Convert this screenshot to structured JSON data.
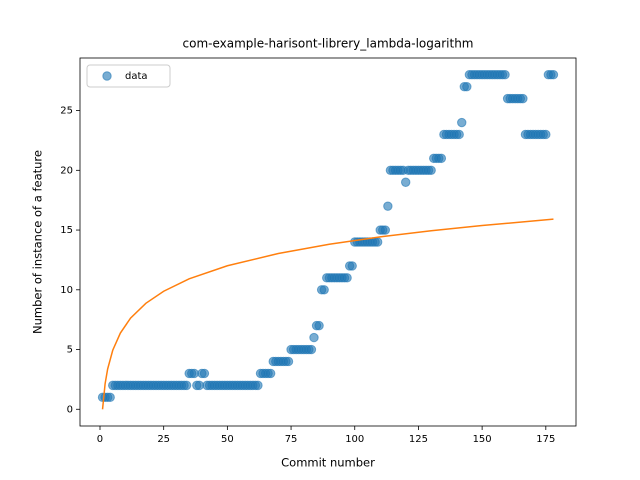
{
  "chart_data": {
    "type": "scatter",
    "title": "com-example-harisont-librery_lambda-logarithm",
    "x_label": "Commit number",
    "y_label": "Number of instance of a feature",
    "legend": "upper left",
    "xlim": [
      -7.85,
      186.85
    ],
    "ylim": [
      -1.4,
      29.4
    ],
    "xticks": [
      0,
      25,
      50,
      75,
      100,
      125,
      150,
      175
    ],
    "yticks": [
      0,
      5,
      10,
      15,
      20,
      25
    ],
    "series": [
      {
        "name": "data",
        "color": "#1f77b4",
        "style": "markers",
        "x": [
          1,
          2,
          3,
          4,
          5,
          6,
          7,
          8,
          9,
          10,
          11,
          12,
          13,
          14,
          15,
          16,
          17,
          18,
          19,
          20,
          21,
          22,
          23,
          24,
          25,
          26,
          27,
          28,
          29,
          30,
          31,
          32,
          33,
          34,
          35,
          36,
          37,
          38,
          39,
          40,
          41,
          42,
          43,
          44,
          45,
          46,
          47,
          48,
          49,
          50,
          51,
          52,
          53,
          54,
          55,
          56,
          57,
          58,
          59,
          60,
          61,
          62,
          63,
          64,
          65,
          66,
          67,
          68,
          69,
          70,
          71,
          72,
          73,
          74,
          75,
          76,
          77,
          78,
          79,
          80,
          81,
          82,
          83,
          84,
          85,
          86,
          87,
          88,
          89,
          90,
          91,
          92,
          93,
          94,
          95,
          96,
          97,
          98,
          99,
          100,
          101,
          102,
          103,
          104,
          105,
          106,
          107,
          108,
          109,
          110,
          111,
          112,
          113,
          114,
          115,
          116,
          117,
          118,
          119,
          120,
          121,
          122,
          123,
          124,
          125,
          126,
          127,
          128,
          129,
          130,
          131,
          132,
          133,
          134,
          135,
          136,
          137,
          138,
          139,
          140,
          141,
          142,
          143,
          144,
          145,
          146,
          147,
          148,
          149,
          150,
          151,
          152,
          153,
          154,
          155,
          156,
          157,
          158,
          159,
          160,
          161,
          162,
          163,
          164,
          165,
          166,
          167,
          168,
          169,
          170,
          171,
          172,
          173,
          174,
          175,
          176,
          177,
          178
        ],
        "values": [
          1,
          1,
          1,
          1,
          2,
          2,
          2,
          2,
          2,
          2,
          2,
          2,
          2,
          2,
          2,
          2,
          2,
          2,
          2,
          2,
          2,
          2,
          2,
          2,
          2,
          2,
          2,
          2,
          2,
          2,
          2,
          2,
          2,
          2,
          3,
          3,
          3,
          2,
          2,
          3,
          3,
          2,
          2,
          2,
          2,
          2,
          2,
          2,
          2,
          2,
          2,
          2,
          2,
          2,
          2,
          2,
          2,
          2,
          2,
          2,
          2,
          2,
          3,
          3,
          3,
          3,
          3,
          4,
          4,
          4,
          4,
          4,
          4,
          4,
          5,
          5,
          5,
          5,
          5,
          5,
          5,
          5,
          5,
          6,
          7,
          7,
          10,
          10,
          11,
          11,
          11,
          11,
          11,
          11,
          11,
          11,
          11,
          12,
          12,
          14,
          14,
          14,
          14,
          14,
          14,
          14,
          14,
          14,
          14,
          15,
          15,
          15,
          17,
          20,
          20,
          20,
          20,
          20,
          20,
          19,
          20,
          20,
          20,
          20,
          20,
          20,
          20,
          20,
          20,
          20,
          21,
          21,
          21,
          21,
          23,
          23,
          23,
          23,
          23,
          23,
          23,
          24,
          27,
          27,
          28,
          28,
          28,
          28,
          28,
          28,
          28,
          28,
          28,
          28,
          28,
          28,
          28,
          28,
          28,
          26,
          26,
          26,
          26,
          26,
          26,
          26,
          23,
          23,
          23,
          23,
          23,
          23,
          23,
          23,
          23,
          28,
          28,
          28
        ]
      },
      {
        "color": "#ff7f0e",
        "style": "line",
        "x": [
          1,
          2,
          3,
          5,
          8,
          12,
          18,
          25,
          35,
          50,
          70,
          90,
          110,
          130,
          150,
          178
        ],
        "values": [
          0,
          2.13,
          3.37,
          4.94,
          6.38,
          7.63,
          8.87,
          9.88,
          10.92,
          12.01,
          13.04,
          13.81,
          14.43,
          14.94,
          15.38,
          15.91
        ]
      }
    ]
  }
}
